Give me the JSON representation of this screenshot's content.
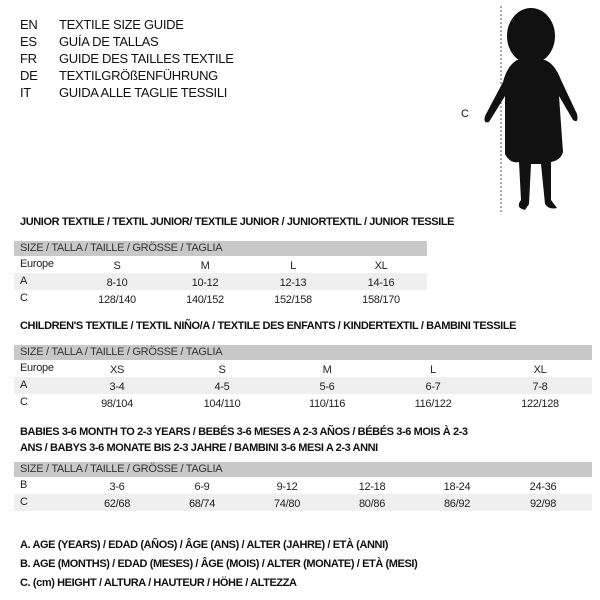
{
  "titles": [
    {
      "code": "EN",
      "text": "TEXTILE SIZE GUIDE"
    },
    {
      "code": "ES",
      "text": "GUÍA DE TALLAS"
    },
    {
      "code": "FR",
      "text": "GUIDE DES TAILLES TEXTILE"
    },
    {
      "code": "DE",
      "text": "TEXTILGRÖßENFÜHRUNG"
    },
    {
      "code": "IT",
      "text": "GUIDA ALLE TAGLIE TESSILI"
    }
  ],
  "figure": {
    "measure_label": "C",
    "icon": "child-silhouette"
  },
  "size_header": "SIZE / TALLA / TAILLE / GRÖSSE / TAGLIA",
  "tables": [
    {
      "title": "JUNIOR TEXTILE / TEXTIL JUNIOR/ TEXTILE JUNIOR / JUNIORTEXTIL / JUNIOR TESSILE",
      "rows": [
        {
          "label": "Europe",
          "values": [
            "S",
            "M",
            "L",
            "XL"
          ]
        },
        {
          "label": "A",
          "values": [
            "8-10",
            "10-12",
            "12-13",
            "14-16"
          ]
        },
        {
          "label": "C",
          "values": [
            "128/140",
            "140/152",
            "152/158",
            "158/170"
          ]
        }
      ]
    },
    {
      "title": "CHILDREN'S TEXTILE / TEXTIL NIÑO/A / TEXTILE DES ENFANTS / KINDERTEXTIL / BAMBINI TESSILE",
      "rows": [
        {
          "label": "Europe",
          "values": [
            "XS",
            "S",
            "M",
            "L",
            "XL"
          ]
        },
        {
          "label": "A",
          "values": [
            "3-4",
            "4-5",
            "5-6",
            "6-7",
            "7-8"
          ]
        },
        {
          "label": "C",
          "values": [
            "98/104",
            "104/110",
            "110/116",
            "116/122",
            "122/128"
          ]
        }
      ]
    },
    {
      "title": "BABIES 3-6 MONTH TO 2-3 YEARS / BEBÉS 3-6 MESES A 2-3 AÑOS / BÉBÉS 3-6 MOIS À 2-3 ANS / BABYS 3-6 MONATE BIS 2-3 JAHRE / BAMBINI 3-6 MESI A 2-3 ANNI",
      "rows": [
        {
          "label": "B",
          "values": [
            "3-6",
            "6-9",
            "9-12",
            "12-18",
            "18-24",
            "24-36"
          ]
        },
        {
          "label": "C",
          "values": [
            "62/68",
            "68/74",
            "74/80",
            "80/86",
            "86/92",
            "92/98"
          ]
        }
      ]
    }
  ],
  "legend": [
    "A. AGE (YEARS) / EDAD (AÑOS) / ÂGE (ANS) / ALTER (JAHRE) / ETÀ (ANNI)",
    "B. AGE (MONTHS) / EDAD (MESES) / ÂGE (MOIS) / ALTER (MONATE) / ETÀ (MESI)",
    "C. (cm) HEIGHT / ALTURA / HAUTEUR / HÖHE / ALTEZZA"
  ]
}
